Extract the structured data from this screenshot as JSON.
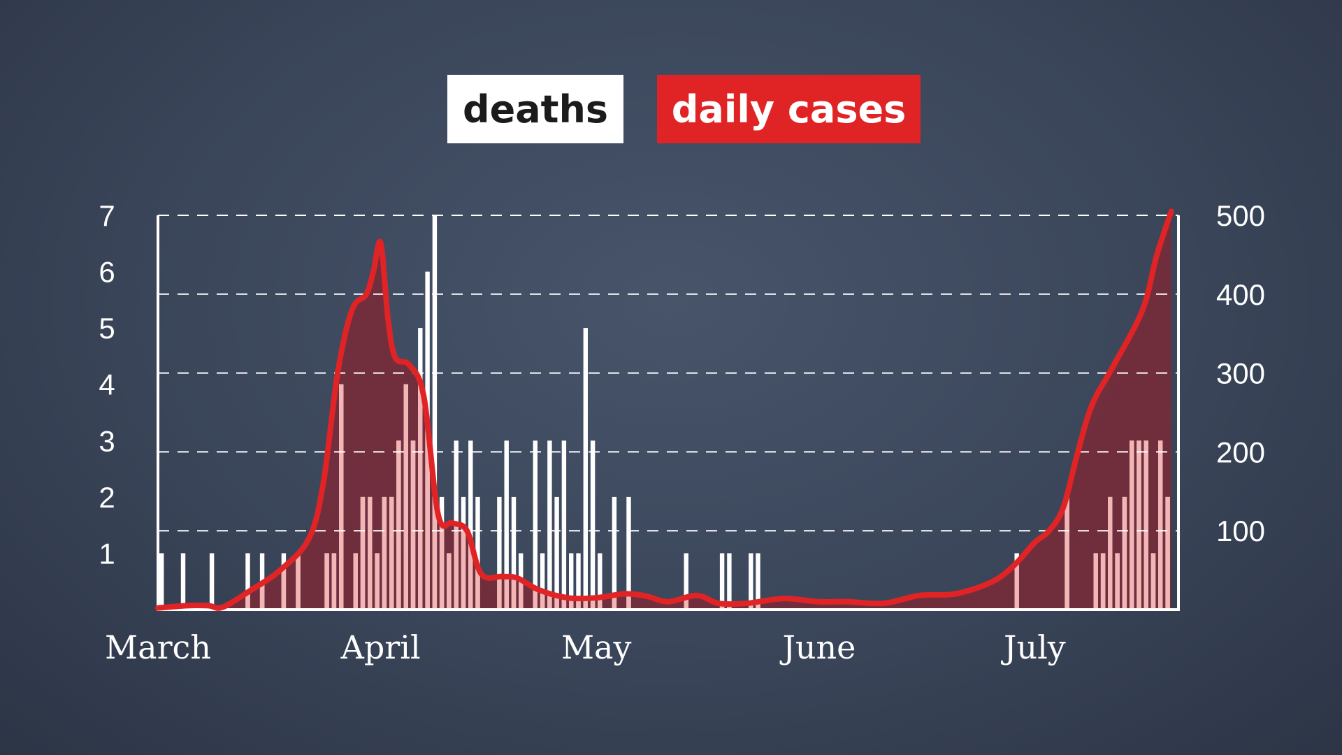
{
  "legend": {
    "deaths_label": "deaths",
    "cases_label": "daily cases"
  },
  "colors": {
    "background": "#3d4859",
    "deaths_bar": "#ffffff",
    "deaths_bar_under_cases": "#f2b6b6",
    "cases_line": "#e02426",
    "cases_fill": "#7a2a38"
  },
  "chart_data": {
    "type": "bar",
    "x_start": "2020-03-01",
    "x_end": "2020-07-21",
    "months": [
      "March",
      "April",
      "May",
      "June",
      "July"
    ],
    "month_starts": [
      "2020-03-01",
      "2020-04-01",
      "2020-05-01",
      "2020-06-01",
      "2020-07-01"
    ],
    "left_axis": {
      "ylim": [
        0,
        7
      ],
      "ticks": [
        1,
        2,
        3,
        4,
        5,
        6,
        7
      ]
    },
    "right_axis": {
      "ylim": [
        0,
        500
      ],
      "ticks": [
        100,
        200,
        300,
        400,
        500
      ]
    },
    "grid": "dashed horizontal",
    "legend_position": "top-center",
    "series": [
      {
        "name": "deaths",
        "type": "bar",
        "axis": "left",
        "points": [
          [
            "2020-03-01",
            1
          ],
          [
            "2020-03-04",
            1
          ],
          [
            "2020-03-08",
            1
          ],
          [
            "2020-03-13",
            1
          ],
          [
            "2020-03-15",
            1
          ],
          [
            "2020-03-18",
            1
          ],
          [
            "2020-03-20",
            1
          ],
          [
            "2020-03-24",
            1
          ],
          [
            "2020-03-25",
            1
          ],
          [
            "2020-03-26",
            4
          ],
          [
            "2020-03-28",
            1
          ],
          [
            "2020-03-29",
            2
          ],
          [
            "2020-03-30",
            2
          ],
          [
            "2020-03-31",
            1
          ],
          [
            "2020-04-01",
            2
          ],
          [
            "2020-04-02",
            2
          ],
          [
            "2020-04-03",
            3
          ],
          [
            "2020-04-04",
            4
          ],
          [
            "2020-04-05",
            3
          ],
          [
            "2020-04-06",
            5
          ],
          [
            "2020-04-07",
            6
          ],
          [
            "2020-04-08",
            7
          ],
          [
            "2020-04-09",
            2
          ],
          [
            "2020-04-10",
            1
          ],
          [
            "2020-04-11",
            3
          ],
          [
            "2020-04-12",
            2
          ],
          [
            "2020-04-13",
            3
          ],
          [
            "2020-04-14",
            2
          ],
          [
            "2020-04-17",
            2
          ],
          [
            "2020-04-18",
            3
          ],
          [
            "2020-04-19",
            2
          ],
          [
            "2020-04-20",
            1
          ],
          [
            "2020-04-22",
            3
          ],
          [
            "2020-04-23",
            1
          ],
          [
            "2020-04-24",
            3
          ],
          [
            "2020-04-25",
            2
          ],
          [
            "2020-04-26",
            3
          ],
          [
            "2020-04-27",
            1
          ],
          [
            "2020-04-28",
            1
          ],
          [
            "2020-04-29",
            5
          ],
          [
            "2020-04-30",
            3
          ],
          [
            "2020-05-01",
            1
          ],
          [
            "2020-05-03",
            2
          ],
          [
            "2020-05-05",
            2
          ],
          [
            "2020-05-13",
            1
          ],
          [
            "2020-05-18",
            1
          ],
          [
            "2020-05-19",
            1
          ],
          [
            "2020-05-22",
            1
          ],
          [
            "2020-05-23",
            1
          ],
          [
            "2020-06-28",
            1
          ],
          [
            "2020-07-05",
            2
          ],
          [
            "2020-07-09",
            1
          ],
          [
            "2020-07-10",
            1
          ],
          [
            "2020-07-11",
            2
          ],
          [
            "2020-07-12",
            1
          ],
          [
            "2020-07-13",
            2
          ],
          [
            "2020-07-14",
            3
          ],
          [
            "2020-07-15",
            3
          ],
          [
            "2020-07-16",
            3
          ],
          [
            "2020-07-17",
            1
          ],
          [
            "2020-07-18",
            3
          ],
          [
            "2020-07-19",
            2
          ]
        ]
      },
      {
        "name": "daily cases",
        "type": "area",
        "axis": "right",
        "points": [
          [
            "2020-03-01",
            2
          ],
          [
            "2020-03-05",
            5
          ],
          [
            "2020-03-08",
            5
          ],
          [
            "2020-03-10",
            3
          ],
          [
            "2020-03-14",
            25
          ],
          [
            "2020-03-18",
            50
          ],
          [
            "2020-03-22",
            90
          ],
          [
            "2020-03-24",
            160
          ],
          [
            "2020-03-26",
            300
          ],
          [
            "2020-03-28",
            380
          ],
          [
            "2020-03-30",
            400
          ],
          [
            "2020-03-31",
            430
          ],
          [
            "2020-04-01",
            465
          ],
          [
            "2020-04-02",
            370
          ],
          [
            "2020-04-03",
            320
          ],
          [
            "2020-04-05",
            310
          ],
          [
            "2020-04-07",
            270
          ],
          [
            "2020-04-09",
            120
          ],
          [
            "2020-04-11",
            110
          ],
          [
            "2020-04-13",
            100
          ],
          [
            "2020-04-15",
            45
          ],
          [
            "2020-04-18",
            42
          ],
          [
            "2020-04-20",
            40
          ],
          [
            "2020-04-23",
            25
          ],
          [
            "2020-04-27",
            15
          ],
          [
            "2020-05-01",
            15
          ],
          [
            "2020-05-05",
            20
          ],
          [
            "2020-05-08",
            17
          ],
          [
            "2020-05-11",
            10
          ],
          [
            "2020-05-15",
            18
          ],
          [
            "2020-05-18",
            8
          ],
          [
            "2020-05-22",
            8
          ],
          [
            "2020-05-27",
            14
          ],
          [
            "2020-06-01",
            10
          ],
          [
            "2020-06-05",
            10
          ],
          [
            "2020-06-10",
            8
          ],
          [
            "2020-06-15",
            18
          ],
          [
            "2020-06-20",
            20
          ],
          [
            "2020-06-25",
            35
          ],
          [
            "2020-06-28",
            55
          ],
          [
            "2020-07-01",
            85
          ],
          [
            "2020-07-03",
            100
          ],
          [
            "2020-07-05",
            130
          ],
          [
            "2020-07-07",
            200
          ],
          [
            "2020-07-09",
            260
          ],
          [
            "2020-07-12",
            310
          ],
          [
            "2020-07-16",
            380
          ],
          [
            "2020-07-18",
            450
          ],
          [
            "2020-07-20",
            505
          ]
        ]
      }
    ]
  }
}
